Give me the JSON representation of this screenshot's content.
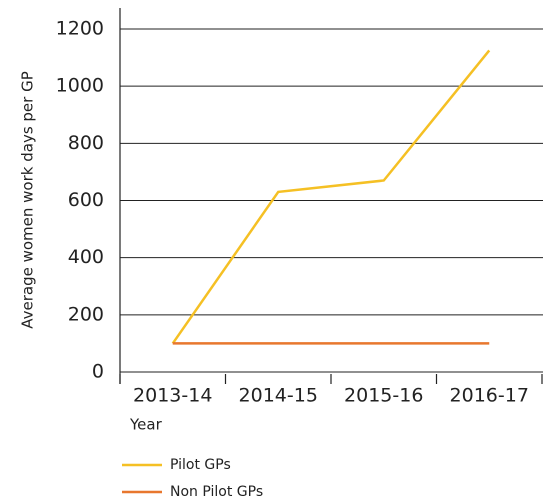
{
  "chart_data": {
    "type": "line",
    "y_label": "Average women work days per GP",
    "x_label": "Year",
    "categories": [
      "2013-14",
      "2014-15",
      "2015-16",
      "2016-17"
    ],
    "series": [
      {
        "name": "Pilot GPs",
        "color": "#f5c024",
        "values": [
          100,
          630,
          670,
          1125
        ]
      },
      {
        "name": "Non Pilot GPs",
        "color": "#e8772e",
        "values": [
          100,
          100,
          100,
          100
        ]
      }
    ],
    "ylim": [
      0,
      1200
    ],
    "yticks": [
      0,
      200,
      400,
      600,
      800,
      1000,
      1200
    ],
    "grid": true
  }
}
